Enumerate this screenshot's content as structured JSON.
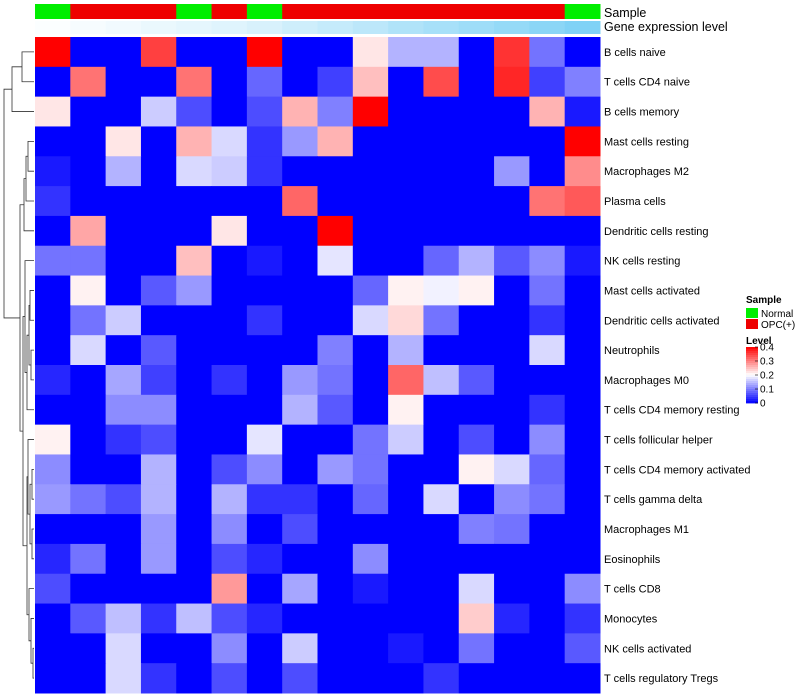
{
  "chart_data": {
    "type": "heatmap",
    "title": "",
    "annotation_tracks": [
      "Sample",
      "Gene expression level"
    ],
    "sample_groups": [
      "Normal",
      "OPC(+)",
      "OPC(+)",
      "OPC(+)",
      "Normal",
      "OPC(+)",
      "Normal",
      "OPC(+)",
      "OPC(+)",
      "OPC(+)",
      "OPC(+)",
      "OPC(+)",
      "OPC(+)",
      "OPC(+)",
      "OPC(+)",
      "Normal"
    ],
    "gene_expression_level": [
      0.02,
      0.05,
      0.08,
      0.12,
      0.15,
      0.18,
      0.22,
      0.28,
      0.33,
      0.38,
      0.45,
      0.5,
      0.55,
      0.6,
      0.66,
      0.72
    ],
    "rows": [
      "B cells naive",
      "T cells CD4 naive",
      "B cells memory",
      "Mast cells resting",
      "Macrophages M2",
      "Plasma cells",
      "Dendritic cells resting",
      "NK cells resting",
      "Mast cells activated",
      "Dendritic cells activated",
      "Neutrophils",
      "Macrophages M0",
      "T cells CD4 memory resting",
      "T cells follicular helper",
      "T cells CD4 memory activated",
      "T cells gamma delta",
      "Macrophages M1",
      "Eosinophils",
      "T cells CD8",
      "Monocytes",
      "NK cells activated",
      "T cells regulatory  Tregs"
    ],
    "values": [
      [
        0.4,
        0.0,
        0.0,
        0.35,
        0.0,
        0.0,
        0.4,
        0.0,
        0.0,
        0.22,
        0.14,
        0.14,
        0.0,
        0.36,
        0.09,
        0.0
      ],
      [
        0.0,
        0.31,
        0.0,
        0.0,
        0.31,
        0.0,
        0.08,
        0.0,
        0.05,
        0.25,
        0.0,
        0.34,
        0.0,
        0.37,
        0.05,
        0.1
      ],
      [
        0.22,
        0.0,
        0.0,
        0.16,
        0.06,
        0.0,
        0.06,
        0.26,
        0.1,
        0.4,
        0.0,
        0.0,
        0.0,
        0.0,
        0.26,
        0.02
      ],
      [
        0.0,
        0.0,
        0.22,
        0.0,
        0.26,
        0.17,
        0.04,
        0.12,
        0.26,
        0.0,
        0.0,
        0.0,
        0.0,
        0.0,
        0.0,
        0.4
      ],
      [
        0.02,
        0.0,
        0.14,
        0.0,
        0.17,
        0.16,
        0.04,
        0.0,
        0.0,
        0.0,
        0.0,
        0.0,
        0.0,
        0.12,
        0.0,
        0.29
      ],
      [
        0.04,
        0.0,
        0.0,
        0.0,
        0.0,
        0.0,
        0.0,
        0.32,
        0.0,
        0.0,
        0.0,
        0.0,
        0.0,
        0.0,
        0.31,
        0.33
      ],
      [
        0.0,
        0.27,
        0.0,
        0.0,
        0.0,
        0.22,
        0.0,
        0.0,
        0.4,
        0.0,
        0.0,
        0.0,
        0.0,
        0.0,
        0.0,
        0.0
      ],
      [
        0.09,
        0.09,
        0.0,
        0.0,
        0.25,
        0.0,
        0.02,
        0.0,
        0.18,
        0.0,
        0.0,
        0.08,
        0.14,
        0.07,
        0.11,
        0.02
      ],
      [
        0.0,
        0.21,
        0.0,
        0.07,
        0.12,
        0.0,
        0.0,
        0.0,
        0.0,
        0.08,
        0.21,
        0.19,
        0.21,
        0.0,
        0.09,
        0.0
      ],
      [
        0.0,
        0.09,
        0.16,
        0.0,
        0.0,
        0.0,
        0.04,
        0.0,
        0.0,
        0.17,
        0.23,
        0.09,
        0.0,
        0.0,
        0.04,
        0.0
      ],
      [
        0.0,
        0.17,
        0.0,
        0.07,
        0.0,
        0.0,
        0.0,
        0.0,
        0.1,
        0.0,
        0.14,
        0.0,
        0.0,
        0.0,
        0.17,
        0.0
      ],
      [
        0.03,
        0.0,
        0.13,
        0.05,
        0.0,
        0.04,
        0.0,
        0.12,
        0.09,
        0.0,
        0.32,
        0.15,
        0.07,
        0.0,
        0.0,
        0.0
      ],
      [
        0.0,
        0.0,
        0.11,
        0.11,
        0.0,
        0.0,
        0.0,
        0.14,
        0.07,
        0.0,
        0.21,
        0.0,
        0.0,
        0.0,
        0.04,
        0.0
      ],
      [
        0.21,
        0.0,
        0.04,
        0.06,
        0.0,
        0.0,
        0.18,
        0.0,
        0.0,
        0.09,
        0.16,
        0.0,
        0.06,
        0.0,
        0.11,
        0.0
      ],
      [
        0.11,
        0.0,
        0.0,
        0.14,
        0.0,
        0.06,
        0.11,
        0.0,
        0.12,
        0.09,
        0.0,
        0.0,
        0.21,
        0.17,
        0.08,
        0.0
      ],
      [
        0.12,
        0.09,
        0.06,
        0.14,
        0.0,
        0.14,
        0.04,
        0.04,
        0.0,
        0.08,
        0.0,
        0.17,
        0.0,
        0.11,
        0.09,
        0.0
      ],
      [
        0.0,
        0.0,
        0.0,
        0.12,
        0.0,
        0.11,
        0.0,
        0.06,
        0.0,
        0.0,
        0.0,
        0.0,
        0.1,
        0.09,
        0.0,
        0.0
      ],
      [
        0.03,
        0.09,
        0.0,
        0.12,
        0.0,
        0.06,
        0.03,
        0.0,
        0.0,
        0.11,
        0.0,
        0.0,
        0.0,
        0.0,
        0.0,
        0.0
      ],
      [
        0.06,
        0.0,
        0.0,
        0.0,
        0.0,
        0.28,
        0.0,
        0.13,
        0.0,
        0.02,
        0.0,
        0.0,
        0.17,
        0.0,
        0.0,
        0.11
      ],
      [
        0.0,
        0.07,
        0.15,
        0.04,
        0.15,
        0.06,
        0.03,
        0.0,
        0.0,
        0.0,
        0.0,
        0.0,
        0.24,
        0.03,
        0.0,
        0.04
      ],
      [
        0.0,
        0.0,
        0.17,
        0.0,
        0.0,
        0.11,
        0.0,
        0.16,
        0.0,
        0.0,
        0.02,
        0.0,
        0.09,
        0.0,
        0.0,
        0.07
      ],
      [
        0.0,
        0.0,
        0.17,
        0.04,
        0.0,
        0.06,
        0.0,
        0.06,
        0.0,
        0.0,
        0.0,
        0.04,
        0.0,
        0.0,
        0.0,
        0.0
      ]
    ],
    "color_scale": {
      "min": 0,
      "max": 0.4,
      "low": "#0000ff",
      "mid": "#ffffff",
      "high": "#ff0000"
    },
    "legend": {
      "sample_title": "Sample",
      "sample_entries": [
        {
          "label": "Normal",
          "color": "#00ee00"
        },
        {
          "label": "OPC(+)",
          "color": "#ee0000"
        }
      ],
      "level_title": "Level",
      "level_ticks": [
        "0.4",
        "0.3",
        "0.2",
        "0.1",
        "0"
      ],
      "placement": "right"
    },
    "expression_track_colors": {
      "low": "#ffffff",
      "high": "#4fc1f2"
    }
  }
}
